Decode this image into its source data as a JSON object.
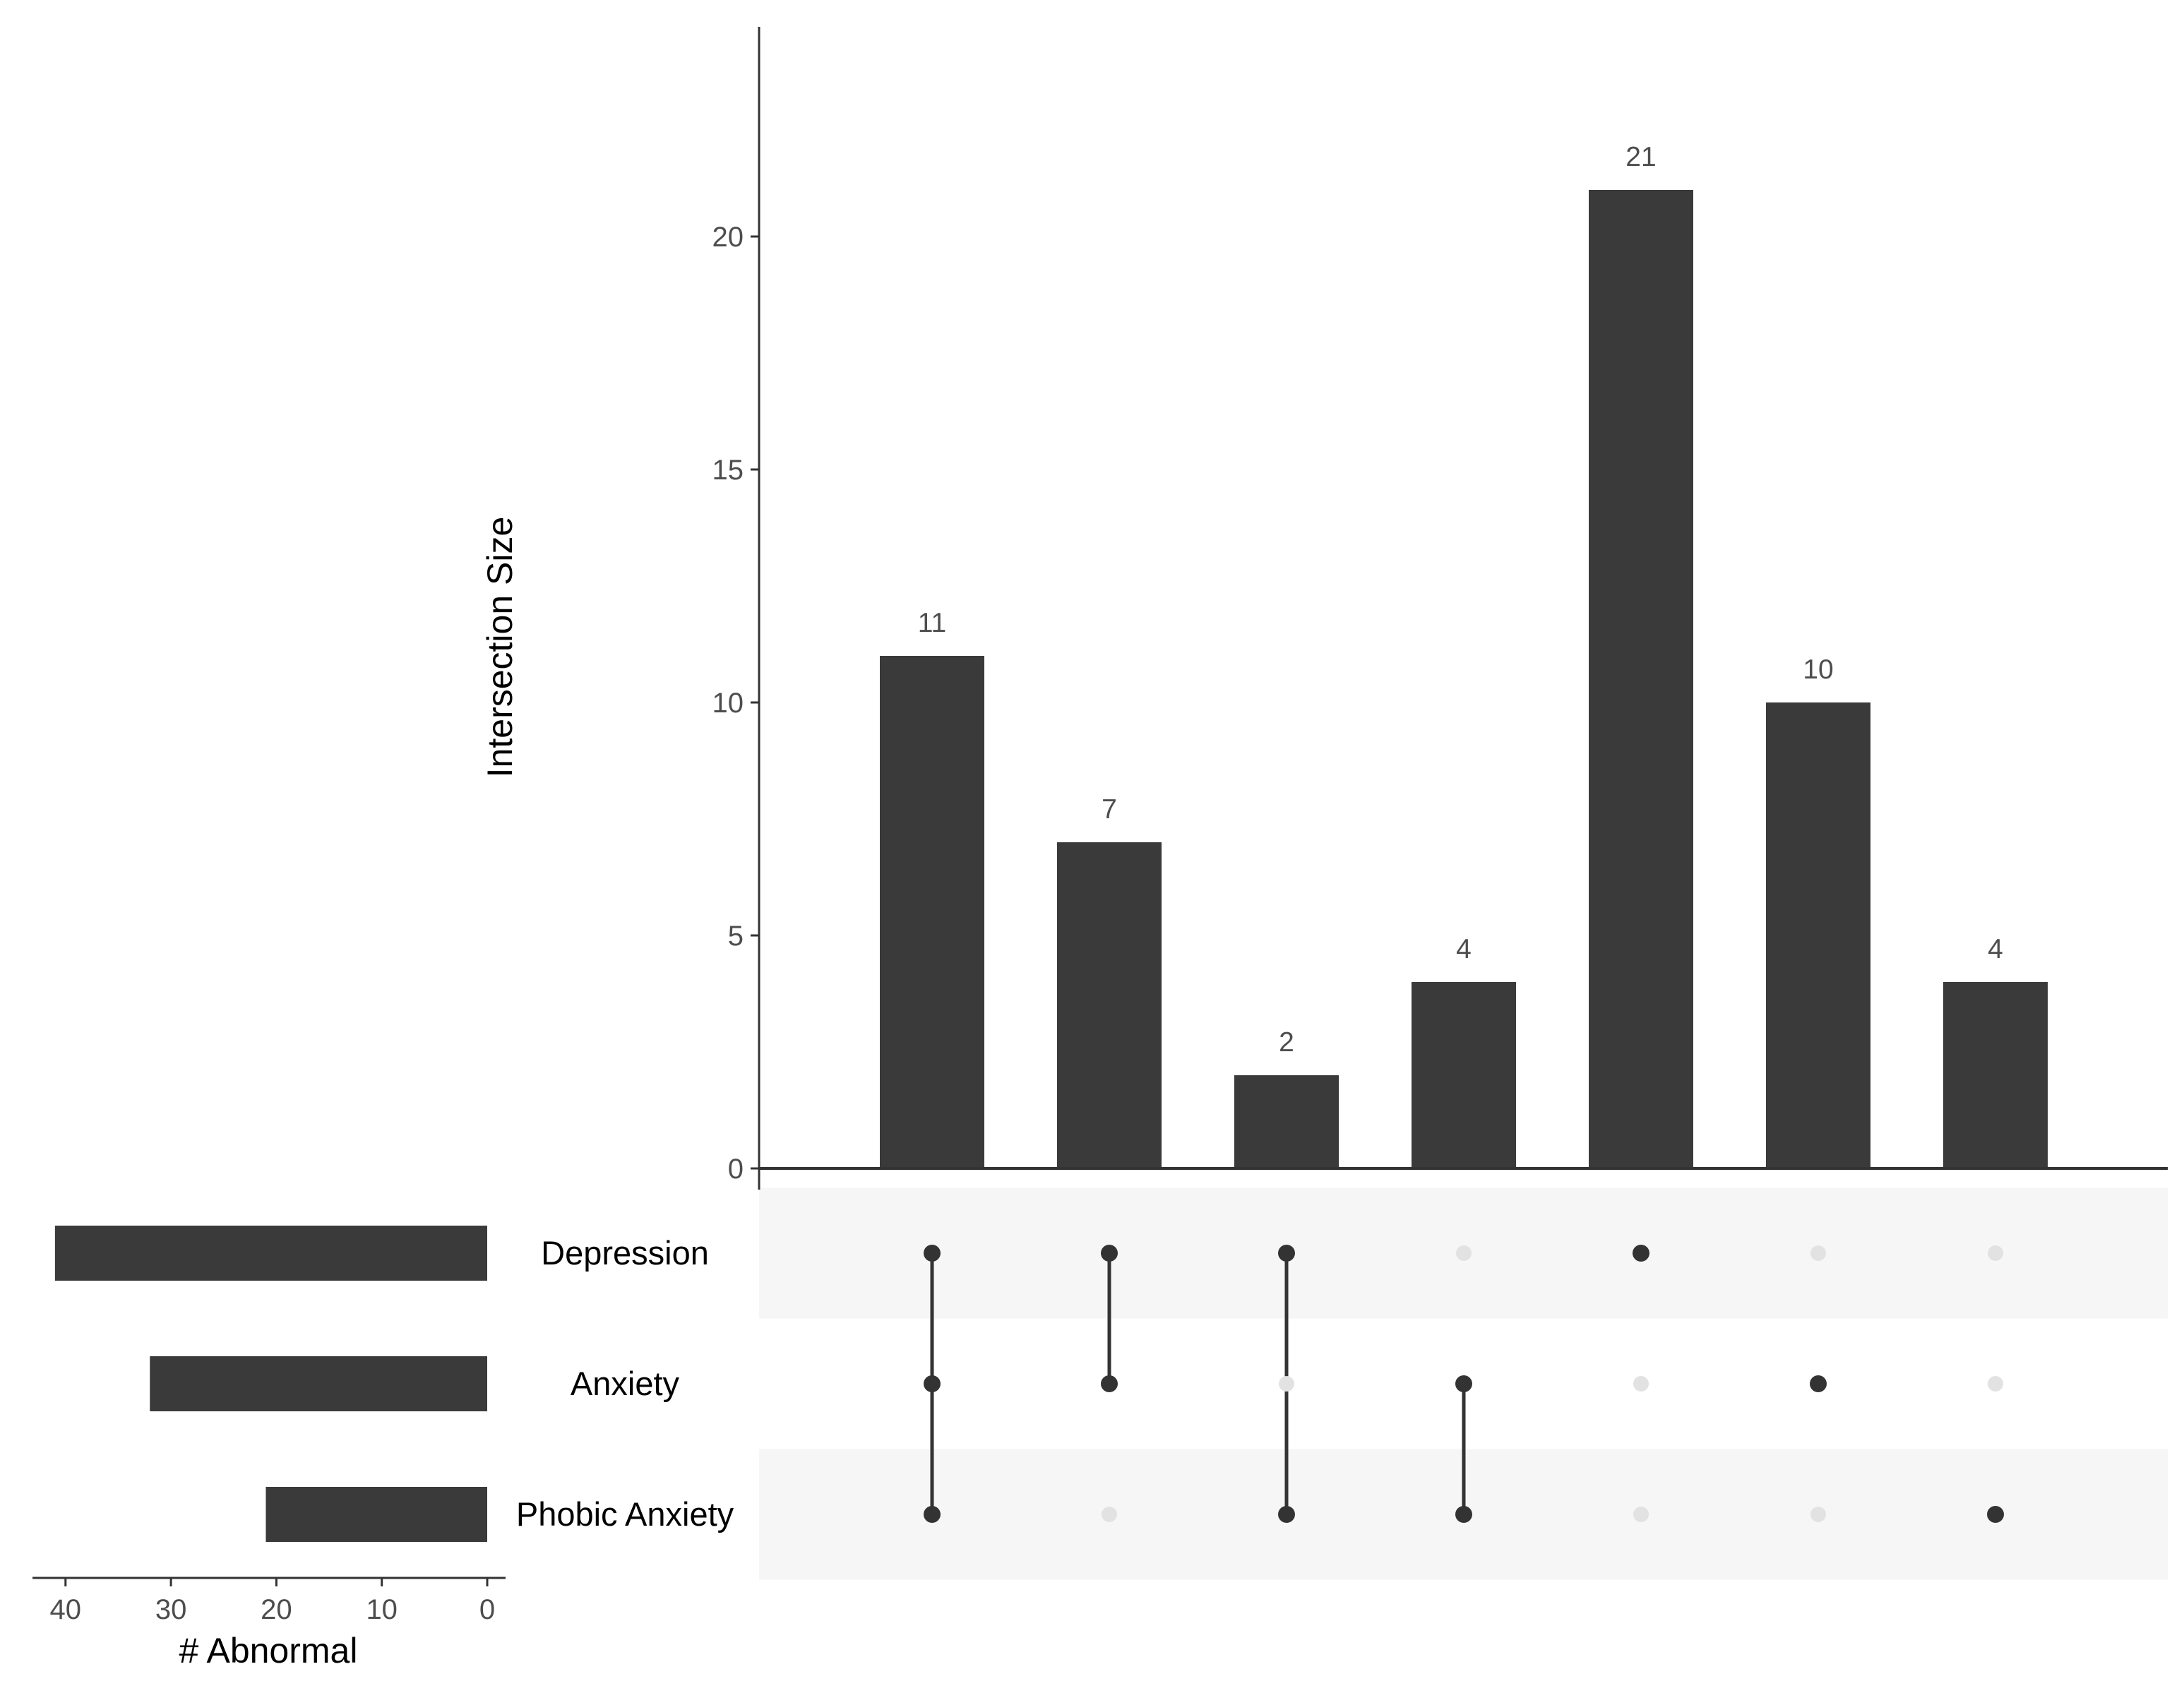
{
  "chart_data": {
    "type": "bar",
    "ylabel": "Intersection Size",
    "ylim": [
      0,
      24.5
    ],
    "yticks": [
      0,
      5,
      10,
      15,
      20
    ],
    "colors": {
      "bar": "#3a3a3a",
      "dot_active": "#333333",
      "dot_inactive": "#e2e2e2",
      "band": "#f6f6f6",
      "axis": "#333333"
    },
    "sets": [
      "Depression",
      "Anxiety",
      "Phobic Anxiety"
    ],
    "set_sizes": {
      "xlabel": "# Abnormal",
      "xticks": [
        40,
        30,
        20,
        10,
        0
      ],
      "xlim": [
        43,
        0
      ],
      "values": [
        41,
        32,
        21
      ]
    },
    "intersections": [
      {
        "members": [
          true,
          true,
          true
        ],
        "value": 11
      },
      {
        "members": [
          true,
          true,
          false
        ],
        "value": 7
      },
      {
        "members": [
          true,
          false,
          true
        ],
        "value": 2
      },
      {
        "members": [
          false,
          true,
          true
        ],
        "value": 4
      },
      {
        "members": [
          true,
          false,
          false
        ],
        "value": 21
      },
      {
        "members": [
          false,
          true,
          false
        ],
        "value": 10
      },
      {
        "members": [
          false,
          false,
          true
        ],
        "value": 4
      }
    ]
  }
}
